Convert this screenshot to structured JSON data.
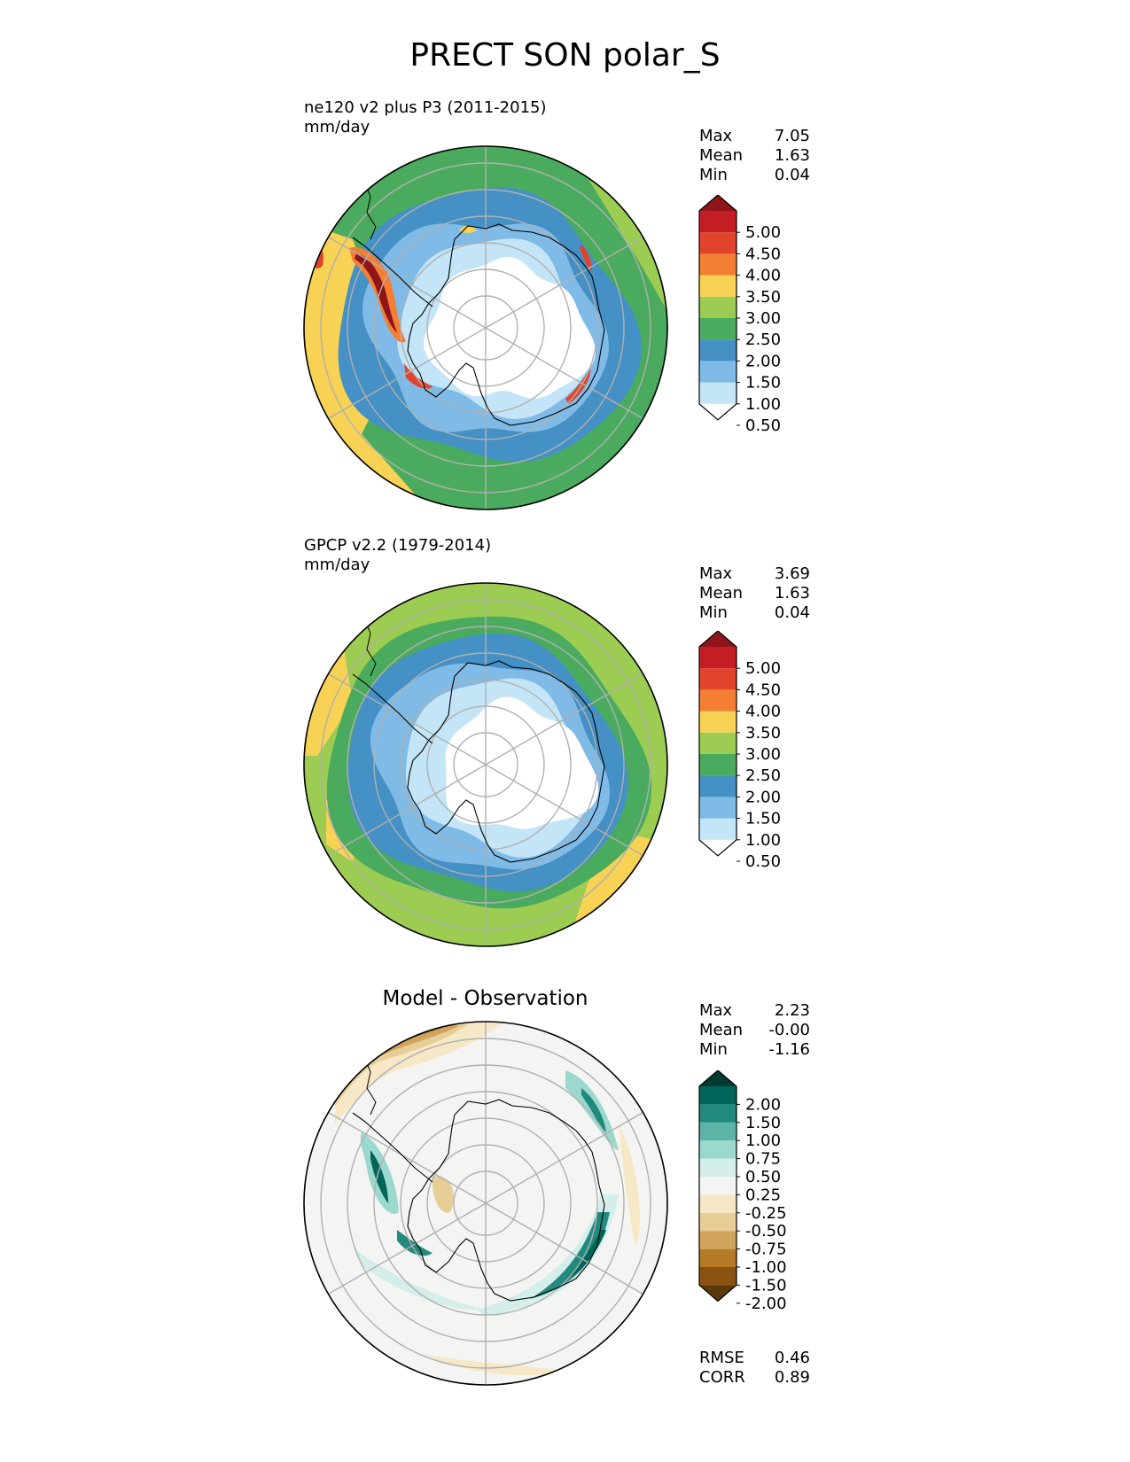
{
  "title": "PRECT SON polar_S",
  "panels": [
    {
      "id": "test",
      "subtitle": "ne120 v2 plus P3 (2011-2015)",
      "units": "mm/day",
      "stats": [
        {
          "label": "Max",
          "value": "7.05"
        },
        {
          "label": "Mean",
          "value": "1.63"
        },
        {
          "label": "Min",
          "value": "0.04"
        }
      ],
      "colorbar_labels": [
        "5.00",
        "4.50",
        "4.00",
        "3.50",
        "3.00",
        "2.50",
        "2.00",
        "1.50",
        "1.00",
        "0.50"
      ]
    },
    {
      "id": "reference",
      "subtitle": "GPCP v2.2 (1979-2014)",
      "units": "mm/day",
      "stats": [
        {
          "label": "Max",
          "value": "3.69"
        },
        {
          "label": "Mean",
          "value": "1.63"
        },
        {
          "label": "Min",
          "value": "0.04"
        }
      ],
      "colorbar_labels": [
        "5.00",
        "4.50",
        "4.00",
        "3.50",
        "3.00",
        "2.50",
        "2.00",
        "1.50",
        "1.00",
        "0.50"
      ]
    },
    {
      "id": "difference",
      "title": "Model - Observation",
      "stats": [
        {
          "label": "Max",
          "value": "2.23"
        },
        {
          "label": "Mean",
          "value": "-0.00"
        },
        {
          "label": "Min",
          "value": "-1.16"
        }
      ],
      "colorbar_labels": [
        "2.00",
        "1.50",
        "1.00",
        "0.75",
        "0.50",
        "0.25",
        "-0.25",
        "-0.50",
        "-0.75",
        "-1.00",
        "-1.50",
        "-2.00"
      ],
      "metrics": [
        {
          "label": "RMSE",
          "value": "0.46"
        },
        {
          "label": "CORR",
          "value": "0.89"
        }
      ]
    }
  ],
  "colormaps": {
    "precip": [
      "#ffffff",
      "#c3e5f7",
      "#7fbbe6",
      "#4590c4",
      "#4aab5e",
      "#9ccd52",
      "#f8d254",
      "#f47f34",
      "#e2432b",
      "#c41e24",
      "#8e1519"
    ],
    "diff": [
      "#5a3a0c",
      "#8a520f",
      "#b47a26",
      "#d0a45c",
      "#e7cd96",
      "#f6e8c7",
      "#f4f4f2",
      "#d4eeea",
      "#9bd8cd",
      "#5bb4a6",
      "#218a7d",
      "#016459",
      "#013a31"
    ]
  }
}
